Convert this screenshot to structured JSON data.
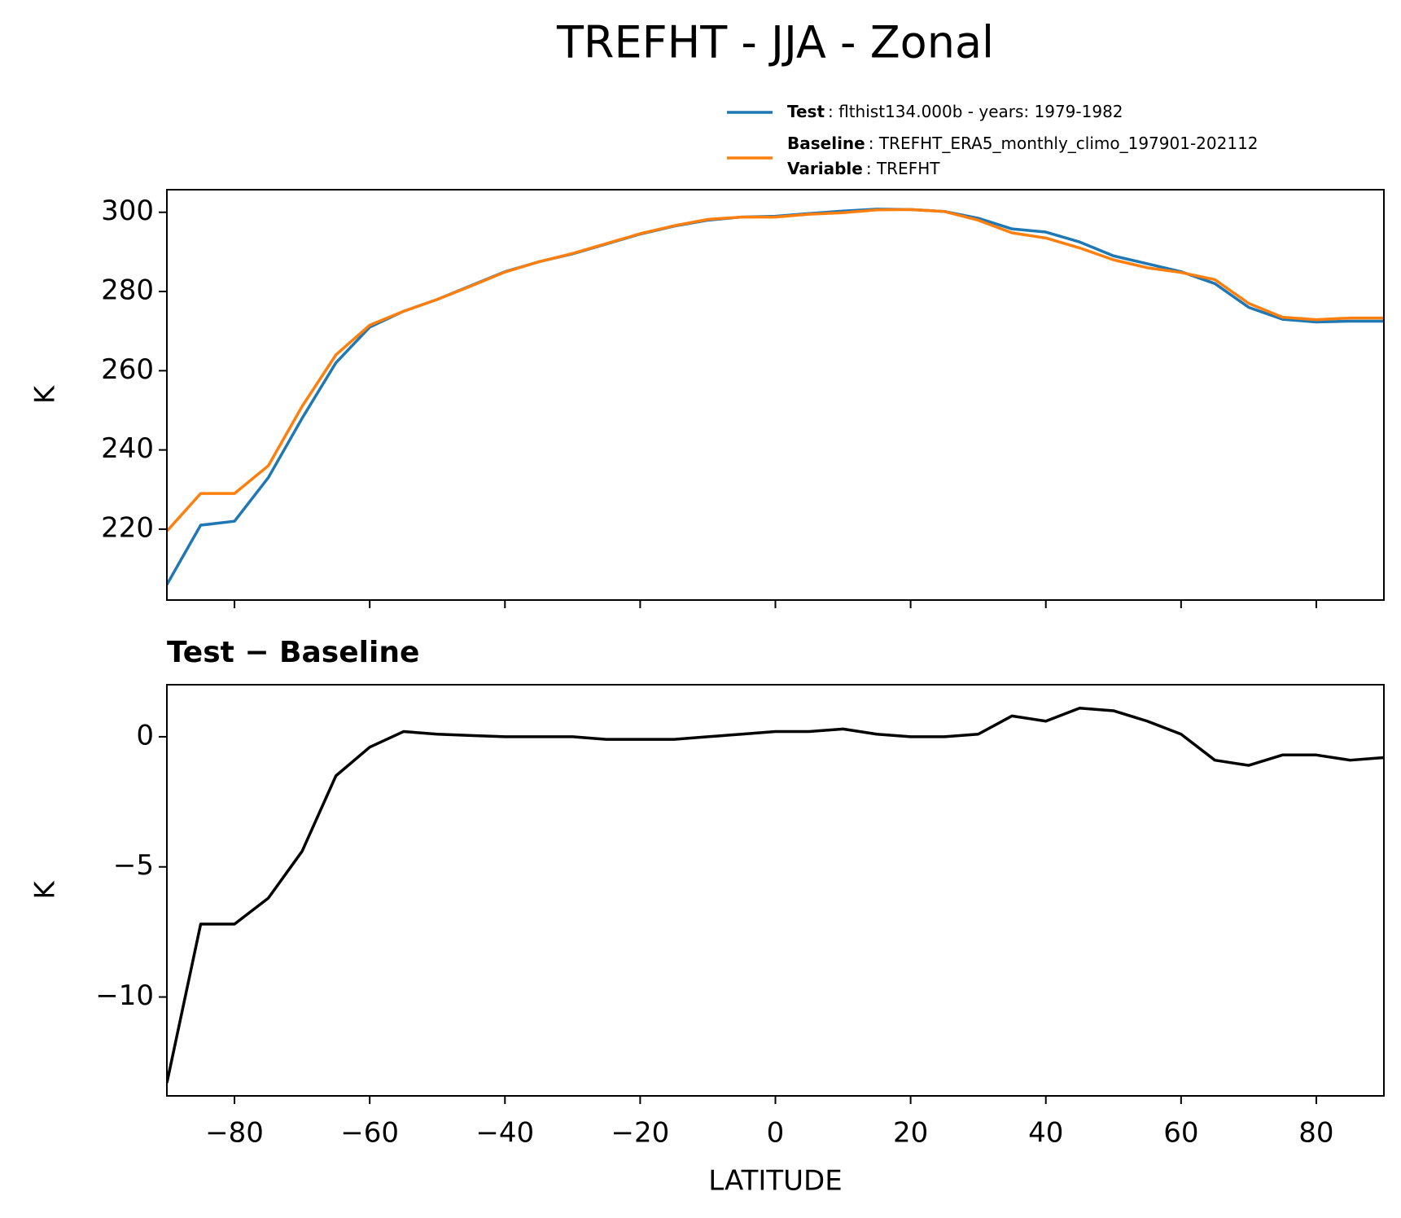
{
  "chart_data": [
    {
      "type": "line",
      "title": "TREFHT - JJA - Zonal",
      "ylabel": "K",
      "x": [
        -90,
        -85,
        -80,
        -75,
        -70,
        -65,
        -60,
        -55,
        -50,
        -45,
        -40,
        -35,
        -30,
        -25,
        -20,
        -15,
        -10,
        -5,
        0,
        5,
        10,
        15,
        20,
        25,
        30,
        35,
        40,
        45,
        50,
        55,
        60,
        65,
        70,
        75,
        80,
        85,
        90
      ],
      "series": [
        {
          "name": "Test",
          "detail": ": flthist134.000b - years: 1979-1982",
          "color": "#1f77b4",
          "values": [
            206,
            221,
            222,
            233,
            248,
            262,
            271,
            275,
            278,
            281.5,
            285,
            287.5,
            289.5,
            292,
            294.5,
            296.5,
            298,
            298.8,
            299,
            299.7,
            300.3,
            300.8,
            300.7,
            300.2,
            298.5,
            295.8,
            295,
            292.5,
            289,
            287,
            285,
            282,
            276,
            273,
            272.3,
            272.5,
            272.5
          ]
        },
        {
          "name": "Baseline",
          "detail": ": TREFHT_ERA5_monthly_climo_197901-202112",
          "color": "#ff7f0e",
          "values": [
            219.5,
            229,
            229,
            236,
            251,
            264,
            271.5,
            275,
            278,
            281.4,
            284.9,
            287.5,
            289.6,
            292.1,
            294.6,
            296.6,
            298.2,
            298.8,
            298.8,
            299.5,
            299.9,
            300.6,
            300.7,
            300.2,
            298,
            294.8,
            293.5,
            291,
            288,
            286,
            284.8,
            283,
            277,
            273.5,
            272.9,
            273.3,
            273.3
          ]
        }
      ],
      "legend_extra": {
        "name": "Variable",
        "detail": ": TREFHT"
      },
      "xlim": [
        -90,
        90
      ],
      "xticks": [
        -80,
        -60,
        -40,
        -20,
        0,
        20,
        40,
        60,
        80
      ],
      "ylim": [
        202.1,
        305.7
      ],
      "yticks": [
        220,
        240,
        260,
        280,
        300
      ]
    },
    {
      "type": "line",
      "title": "Test − Baseline",
      "xlabel": "LATITUDE",
      "ylabel": "K",
      "x": [
        -90,
        -85,
        -80,
        -75,
        -70,
        -65,
        -60,
        -55,
        -50,
        -45,
        -40,
        -35,
        -30,
        -25,
        -20,
        -15,
        -10,
        -5,
        0,
        5,
        10,
        15,
        20,
        25,
        30,
        35,
        40,
        45,
        50,
        55,
        60,
        65,
        70,
        75,
        80,
        85,
        90
      ],
      "series": [
        {
          "color": "#000000",
          "values": [
            -13.3,
            -7.2,
            -7.2,
            -6.2,
            -4.4,
            -1.5,
            -0.4,
            0.2,
            0.1,
            0.05,
            0,
            0,
            0,
            -0.1,
            -0.1,
            -0.1,
            0,
            0.1,
            0.2,
            0.2,
            0.3,
            0.1,
            0,
            0,
            0.1,
            0.8,
            0.6,
            1.1,
            1.0,
            0.6,
            0.1,
            -0.9,
            -1.1,
            -0.7,
            -0.7,
            -0.9,
            -0.8
          ]
        }
      ],
      "xlim": [
        -90,
        90
      ],
      "xticks": [
        {
          "value": -80,
          "label": "−80"
        },
        {
          "value": -60,
          "label": "−60"
        },
        {
          "value": -40,
          "label": "−40"
        },
        {
          "value": -20,
          "label": "−20"
        },
        0,
        20,
        40,
        60,
        80
      ],
      "ylim": [
        -13.8,
        2.0
      ],
      "yticks": [
        {
          "value": -10,
          "label": "−10"
        },
        {
          "value": -5,
          "label": "−5"
        },
        0
      ]
    }
  ]
}
